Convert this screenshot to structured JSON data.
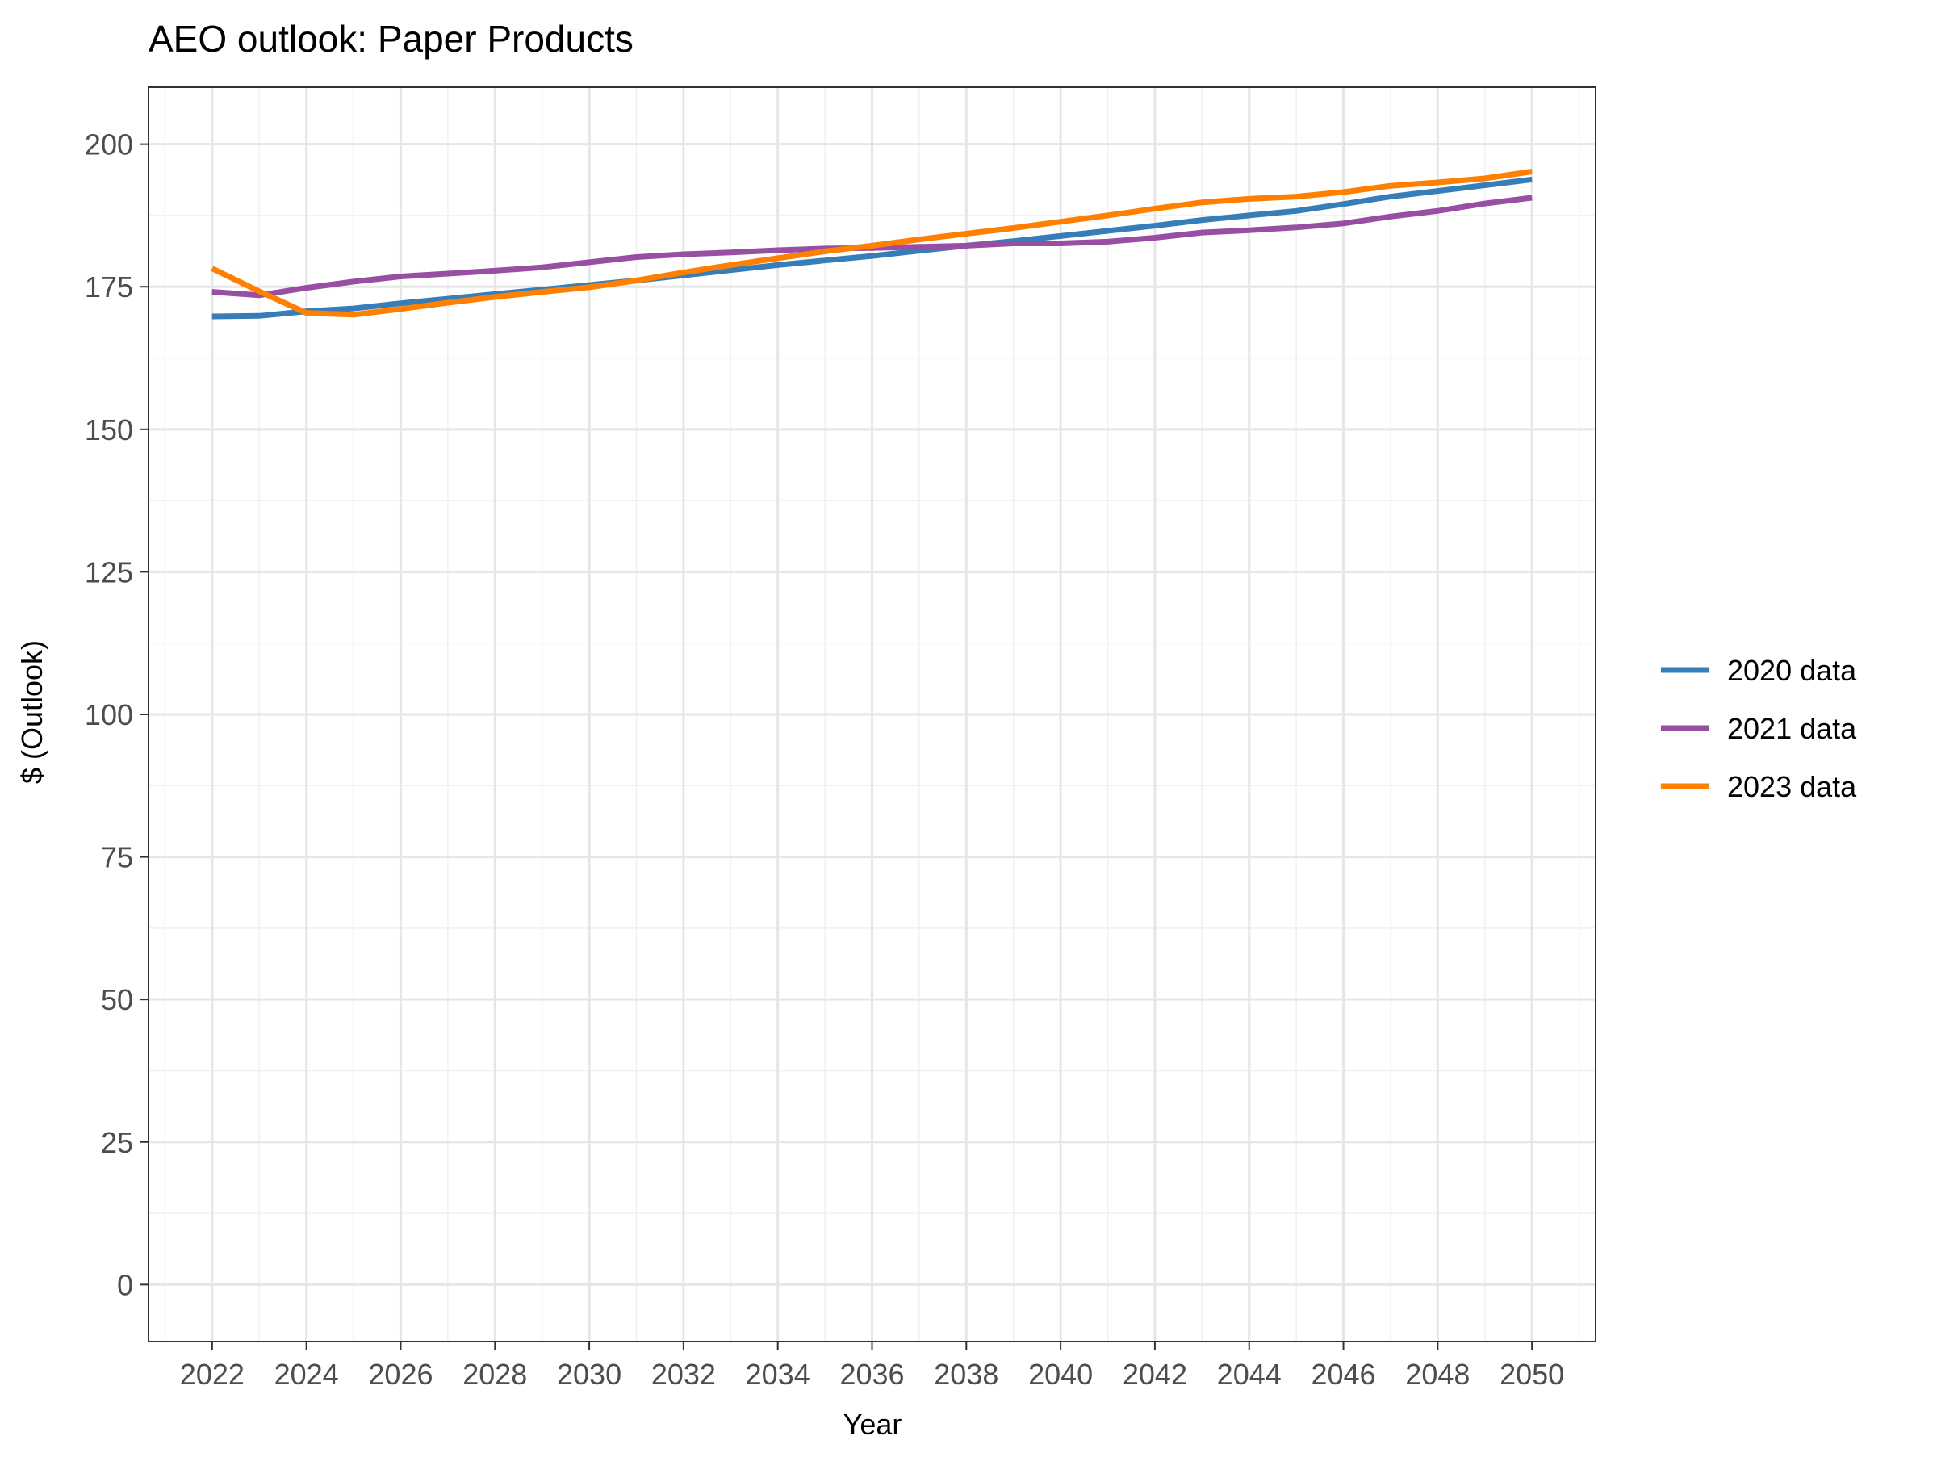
{
  "chart_data": {
    "type": "line",
    "title": "AEO outlook: Paper Products",
    "xlabel": "Year",
    "ylabel": "$ (Outlook)",
    "xlim": [
      2020.65,
      2051.35
    ],
    "ylim": [
      -10,
      210
    ],
    "x_ticks": [
      2022,
      2024,
      2026,
      2028,
      2030,
      2032,
      2034,
      2036,
      2038,
      2040,
      2042,
      2044,
      2046,
      2048,
      2050
    ],
    "y_ticks": [
      0,
      25,
      50,
      75,
      100,
      125,
      150,
      175,
      200
    ],
    "grid": true,
    "legend_position": "right",
    "x": [
      2022,
      2023,
      2024,
      2025,
      2026,
      2027,
      2028,
      2029,
      2030,
      2031,
      2032,
      2033,
      2034,
      2035,
      2036,
      2037,
      2038,
      2039,
      2040,
      2041,
      2042,
      2043,
      2044,
      2045,
      2046,
      2047,
      2048,
      2049,
      2050
    ],
    "series": [
      {
        "name": "2020 data",
        "color": "#377EB8",
        "values": [
          169.8,
          169.9,
          170.7,
          171.2,
          172.1,
          172.9,
          173.7,
          174.5,
          175.3,
          176.1,
          177.0,
          177.9,
          178.8,
          179.6,
          180.4,
          181.3,
          182.2,
          183.0,
          183.9,
          184.8,
          185.7,
          186.7,
          187.5,
          188.3,
          189.5,
          190.8,
          191.8,
          192.8,
          193.8
        ]
      },
      {
        "name": "2021 data",
        "color": "#984EA3",
        "values": [
          174.1,
          173.5,
          174.8,
          175.9,
          176.8,
          177.3,
          177.8,
          178.4,
          179.3,
          180.2,
          180.7,
          181.0,
          181.4,
          181.7,
          181.8,
          182.0,
          182.2,
          182.6,
          182.6,
          182.9,
          183.6,
          184.5,
          184.9,
          185.4,
          186.1,
          187.3,
          188.3,
          189.6,
          190.6
        ]
      },
      {
        "name": "2023 data",
        "color": "#FF7F00",
        "values": [
          178.2,
          174.2,
          170.4,
          170.1,
          171.1,
          172.2,
          173.2,
          174.1,
          174.9,
          176.1,
          177.5,
          178.8,
          180.0,
          181.2,
          182.2,
          183.3,
          184.3,
          185.3,
          186.4,
          187.5,
          188.7,
          189.8,
          190.4,
          190.8,
          191.6,
          192.7,
          193.3,
          194.0,
          195.2
        ]
      }
    ]
  }
}
